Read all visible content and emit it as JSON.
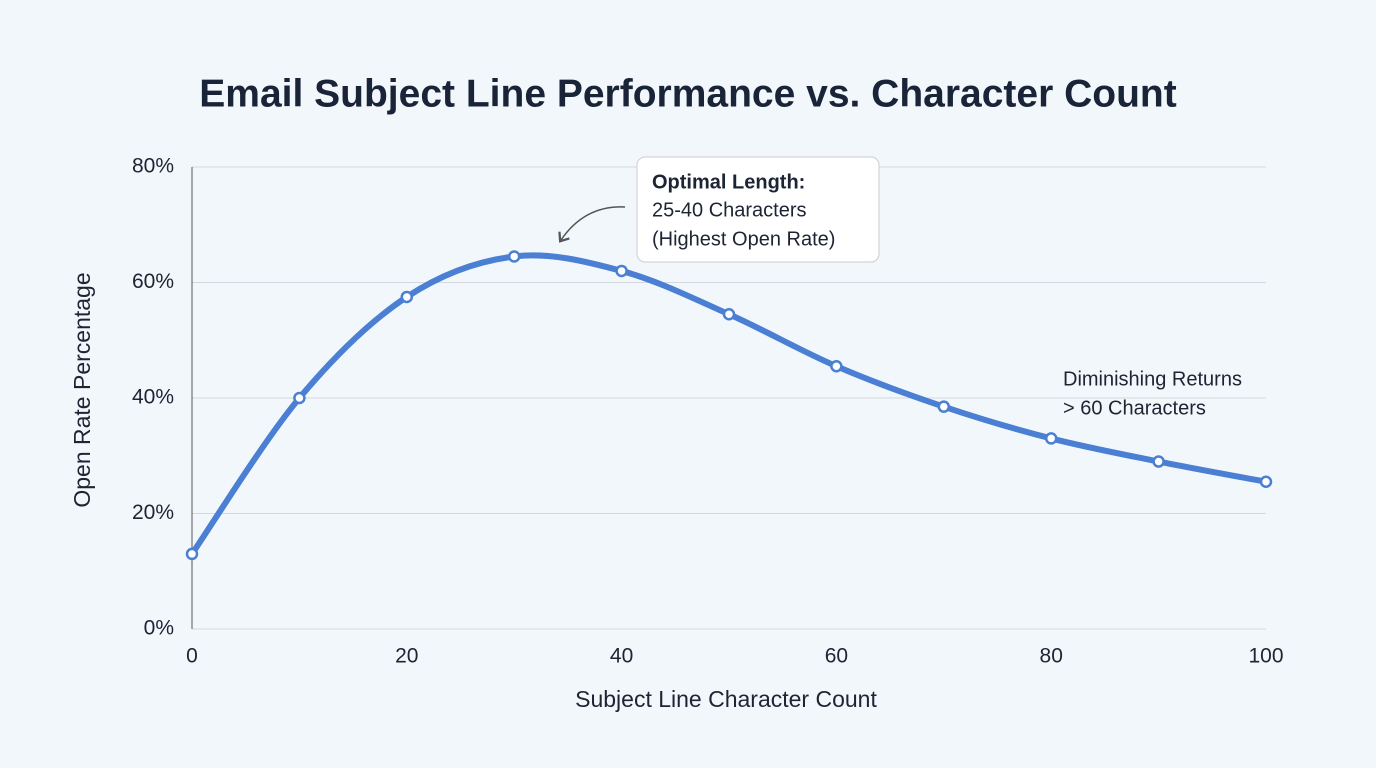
{
  "chart_data": {
    "type": "line",
    "title": "Email Subject Line Performance vs. Character Count",
    "x_label": "Subject Line Character Count",
    "y_label": "Open Rate Percentage",
    "x": [
      0,
      10,
      20,
      30,
      40,
      50,
      60,
      70,
      80,
      90,
      100
    ],
    "series": [
      {
        "name": "Open Rate",
        "color": "#4a7fd4",
        "values": [
          13,
          40,
          57.5,
          64.5,
          62,
          54.5,
          45.5,
          38.5,
          33,
          29,
          25.5
        ]
      }
    ],
    "xlim": [
      0,
      100
    ],
    "xticks": [
      0,
      20,
      40,
      60,
      80,
      100
    ],
    "ylim": [
      0,
      80
    ],
    "yticks": [
      {
        "value": 0,
        "label": "0%"
      },
      {
        "value": 20,
        "label": "20%"
      },
      {
        "value": 40,
        "label": "40%"
      },
      {
        "value": 60,
        "label": "60%"
      },
      {
        "value": 80,
        "label": "80%"
      }
    ],
    "grid": true,
    "annotations": [
      {
        "title": "Optimal Length:",
        "lines": [
          "25-40 Characters",
          "(Highest Open Rate)"
        ]
      },
      {
        "lines": [
          "Diminishing Returns",
          "> 60 Characters"
        ]
      }
    ]
  }
}
